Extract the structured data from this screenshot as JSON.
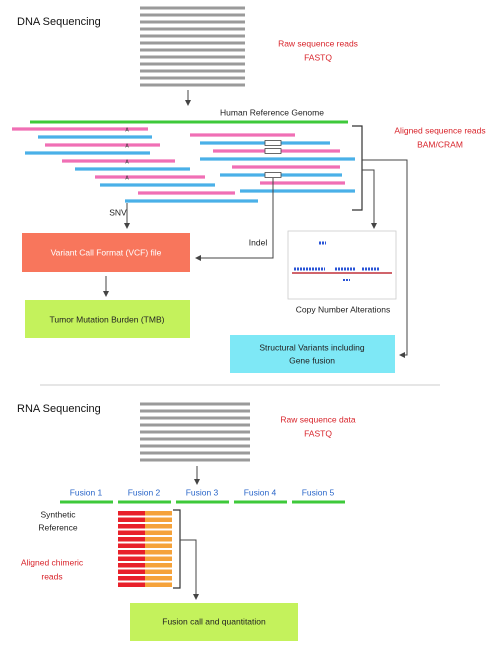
{
  "dna": {
    "title": "DNA Sequencing",
    "raw_reads": [
      "Raw sequence reads",
      "FASTQ"
    ],
    "reference": "Human Reference Genome",
    "aligned_reads": [
      "Aligned sequence reads",
      "BAM/CRAM"
    ],
    "snv": "SNV",
    "indel": "Indel",
    "vcf": "Variant Call Format (VCF) file",
    "cna": "Copy Number Alterations",
    "tmb": "Tumor Mutation Burden (TMB)",
    "structural_variants": [
      "Structural Variants including",
      "Gene fusion"
    ]
  },
  "rna": {
    "title": "RNA Sequencing",
    "raw_data": [
      "Raw sequence data",
      "FASTQ"
    ],
    "fusions": [
      "Fusion 1",
      "Fusion 2",
      "Fusion 3",
      "Fusion 4",
      "Fusion 5"
    ],
    "synthetic_reference": [
      "Synthetic",
      "Reference"
    ],
    "chimeric_reads": [
      "Aligned chimeric",
      "reads"
    ],
    "fusion_call": "Fusion call and quantitation"
  }
}
